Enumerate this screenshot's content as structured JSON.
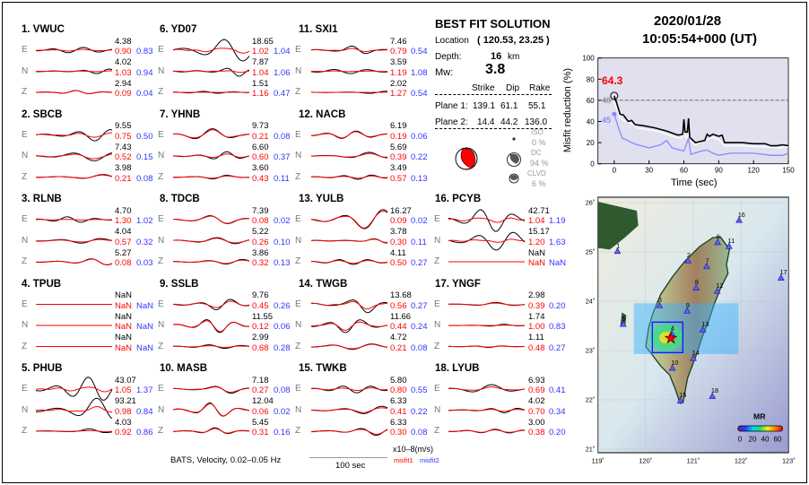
{
  "header": {
    "date": "2020/01/28",
    "time": "10:05:54+000  (UT)"
  },
  "best_fit": {
    "title": "BEST FIT SOLUTION",
    "location_label": "Location",
    "location": "( 120.53,  23.25 )",
    "depth_label": "Depth:",
    "depth": "16",
    "depth_unit": "km",
    "mw_label": "Mw:",
    "mw": "3.8",
    "headers": [
      "Strike",
      "Dip",
      "Rake"
    ],
    "planes": [
      {
        "label": "Plane 1:",
        "strike": "139.1",
        "dip": "61.1",
        "rake": "55.1"
      },
      {
        "label": "Plane 2:",
        "strike": "14.4",
        "dip": "44.2",
        "rake": "136.0"
      }
    ],
    "iso_label": "ISO",
    "iso": "0  %",
    "dc_label": "DC",
    "dc": "94 %",
    "clvd_label": "CLVD",
    "clvd": "6  %",
    "colors": {
      "beachball": "#ff0000"
    }
  },
  "footer": {
    "info": "BATS, Velocity, 0.02–0.05 Hz",
    "scale": "100 sec",
    "units": "x10–8(m/s)",
    "misfit1": "misfit1",
    "misfit2": "misfit2"
  },
  "stations": [
    {
      "title": "1.  VWUC",
      "comps": [
        [
          "E",
          "4.38",
          "0.90",
          "0.83"
        ],
        [
          "N",
          "4.02",
          "1.03",
          "0.94"
        ],
        [
          "Z",
          "2.94",
          "0.09",
          "0.04"
        ]
      ]
    },
    {
      "title": "2.  SBCB",
      "comps": [
        [
          "E",
          "9.55",
          "0.75",
          "0.50"
        ],
        [
          "N",
          "7.43",
          "0.52",
          "0.15"
        ],
        [
          "Z",
          "3.98",
          "0.21",
          "0.08"
        ]
      ]
    },
    {
      "title": "3.  RLNB",
      "comps": [
        [
          "E",
          "4.70",
          "1.30",
          "1.02"
        ],
        [
          "N",
          "4.04",
          "0.57",
          "0.32"
        ],
        [
          "Z",
          "5.27",
          "0.08",
          "0.03"
        ]
      ]
    },
    {
      "title": "4.  TPUB",
      "comps": [
        [
          "E",
          "NaN",
          "NaN",
          "NaN"
        ],
        [
          "N",
          "NaN",
          "NaN",
          "NaN"
        ],
        [
          "Z",
          "NaN",
          "NaN",
          "NaN"
        ]
      ]
    },
    {
      "title": "5.  PHUB",
      "comps": [
        [
          "E",
          "43.07",
          "1.05",
          "1.37"
        ],
        [
          "N",
          "93.21",
          "0.98",
          "0.84"
        ],
        [
          "Z",
          "4.03",
          "0.92",
          "0.86"
        ]
      ]
    },
    {
      "title": "6.  YD07",
      "comps": [
        [
          "E",
          "18.65",
          "1.02",
          "1.04"
        ],
        [
          "N",
          "7.87",
          "1.04",
          "1.06"
        ],
        [
          "Z",
          "1.51",
          "1.16",
          "0.47"
        ]
      ]
    },
    {
      "title": "7.  YHNB",
      "comps": [
        [
          "E",
          "9.73",
          "0.21",
          "0.08"
        ],
        [
          "N",
          "6.60",
          "0.60",
          "0.37"
        ],
        [
          "Z",
          "3.60",
          "0.43",
          "0.11"
        ]
      ]
    },
    {
      "title": "8.  TDCB",
      "comps": [
        [
          "E",
          "7.39",
          "0.08",
          "0.02"
        ],
        [
          "N",
          "5.22",
          "0.26",
          "0.10"
        ],
        [
          "Z",
          "3.86",
          "0.32",
          "0.13"
        ]
      ]
    },
    {
      "title": "9.  SSLB",
      "comps": [
        [
          "E",
          "9.76",
          "0.45",
          "0.26"
        ],
        [
          "N",
          "11.55",
          "0.12",
          "0.06"
        ],
        [
          "Z",
          "2.99",
          "0.68",
          "0.28"
        ]
      ]
    },
    {
      "title": "10. MASB",
      "comps": [
        [
          "E",
          "7.18",
          "0.27",
          "0.08"
        ],
        [
          "N",
          "12.04",
          "0.06",
          "0.02"
        ],
        [
          "Z",
          "5.45",
          "0.31",
          "0.16"
        ]
      ]
    },
    {
      "title": "11. SXI1",
      "comps": [
        [
          "E",
          "7.46",
          "0.79",
          "0.54"
        ],
        [
          "N",
          "3.59",
          "1.19",
          "1.08"
        ],
        [
          "Z",
          "2.02",
          "1.27",
          "0.54"
        ]
      ]
    },
    {
      "title": "12. NACB",
      "comps": [
        [
          "E",
          "6.19",
          "0.19",
          "0.06"
        ],
        [
          "N",
          "5.69",
          "0.39",
          "0.22"
        ],
        [
          "Z",
          "3.49",
          "0.57",
          "0.13"
        ]
      ]
    },
    {
      "title": "13. YULB",
      "comps": [
        [
          "E",
          "16.27",
          "0.09",
          "0.02"
        ],
        [
          "N",
          "3.78",
          "0.30",
          "0.11"
        ],
        [
          "Z",
          "4.11",
          "0.50",
          "0.27"
        ]
      ]
    },
    {
      "title": "14. TWGB",
      "comps": [
        [
          "E",
          "13.68",
          "0.56",
          "0.27"
        ],
        [
          "N",
          "11.66",
          "0.44",
          "0.24"
        ],
        [
          "Z",
          "4.72",
          "0.21",
          "0.08"
        ]
      ]
    },
    {
      "title": "15. TWKB",
      "comps": [
        [
          "E",
          "5.80",
          "0.80",
          "0.55"
        ],
        [
          "N",
          "6.33",
          "0.41",
          "0.22"
        ],
        [
          "Z",
          "6.33",
          "0.30",
          "0.08"
        ]
      ]
    },
    {
      "title": "16. PCYB",
      "comps": [
        [
          "E",
          "42.71",
          "1.04",
          "1.19"
        ],
        [
          "N",
          "15.17",
          "1.20",
          "1.63"
        ],
        [
          "Z",
          "NaN",
          "NaN",
          "NaN"
        ]
      ]
    },
    {
      "title": "17. YNGF",
      "comps": [
        [
          "E",
          "2.98",
          "0.39",
          "0.20"
        ],
        [
          "N",
          "1.74",
          "1.00",
          "0.83"
        ],
        [
          "Z",
          "1.11",
          "0.48",
          "0.27"
        ]
      ]
    },
    {
      "title": "18. LYUB",
      "comps": [
        [
          "E",
          "6.93",
          "0.69",
          "0.41"
        ],
        [
          "N",
          "4.02",
          "0.70",
          "0.34"
        ],
        [
          "Z",
          "3.00",
          "0.38",
          "0.20"
        ]
      ]
    }
  ],
  "chart_data": [
    {
      "type": "line",
      "xlabel": "Time (sec)",
      "ylabel": "Misfit reduction (%)",
      "xlim": [
        -14,
        150
      ],
      "ylim": [
        0,
        100
      ],
      "xticks": [
        "0",
        "30",
        "60",
        "90",
        "120",
        "150"
      ],
      "yticks": [
        "0",
        "20",
        "40",
        "60",
        "80",
        "100"
      ],
      "reference_line": 60,
      "max_label": "64.3",
      "label_white": "48",
      "label_blue": "45",
      "colors": {
        "black": "#000000",
        "white": "#ffffff",
        "blue": "#8888ff",
        "background": "#e0e0ee",
        "max": "#ff0000"
      },
      "series": [
        {
          "color": "black",
          "x": [
            0,
            2,
            5,
            8,
            12,
            15,
            18,
            25,
            35,
            45,
            55,
            59,
            60,
            61,
            63,
            64,
            65,
            70,
            78,
            80,
            82,
            85,
            90,
            93,
            95,
            110,
            120,
            130,
            135,
            140,
            145,
            150
          ],
          "y": [
            64,
            58,
            47,
            46,
            40,
            41,
            37,
            36,
            34,
            31,
            27,
            28,
            42,
            30,
            30,
            43,
            25,
            20,
            22,
            28,
            26,
            28,
            26,
            27,
            20,
            20,
            19,
            19,
            17,
            17,
            18,
            17
          ]
        },
        {
          "color": "white",
          "x": [
            0,
            2,
            5,
            10,
            15,
            20,
            30,
            40,
            50,
            58,
            60,
            62,
            64,
            66,
            70,
            80,
            85,
            90,
            95,
            110,
            130,
            140,
            150
          ],
          "y": [
            59,
            53,
            43,
            40,
            38,
            34,
            32,
            30,
            26,
            24,
            30,
            24,
            28,
            21,
            18,
            23,
            25,
            23,
            17,
            17,
            16,
            15,
            16
          ]
        },
        {
          "color": "blue",
          "x": [
            0,
            2,
            4,
            7,
            10,
            15,
            20,
            30,
            40,
            45,
            50,
            60,
            62,
            64,
            66,
            75,
            80,
            85,
            90,
            100,
            120,
            135,
            145,
            150
          ],
          "y": [
            47,
            40,
            33,
            24,
            23,
            20,
            18,
            15,
            18,
            22,
            15,
            12,
            18,
            24,
            9,
            12,
            13,
            10,
            8,
            10,
            10,
            8,
            8,
            10
          ]
        }
      ]
    },
    {
      "type": "map",
      "lon_ticks": [
        "119˚",
        "120˚",
        "121˚",
        "122˚",
        "123˚"
      ],
      "lat_ticks": [
        "21˚",
        "22˚",
        "23˚",
        "24˚",
        "25˚",
        "26˚"
      ],
      "epicenter": {
        "lon": 120.53,
        "lat": 23.25
      },
      "colorbar": {
        "title": "MR",
        "labels": [
          "0",
          "20",
          "40",
          "60"
        ]
      },
      "stations": [
        {
          "id": "1",
          "lon": 119.41,
          "lat": 25.01
        },
        {
          "id": "2",
          "lon": 120.89,
          "lat": 24.82
        },
        {
          "id": "3",
          "lon": 120.29,
          "lat": 23.91
        },
        {
          "id": "4",
          "lon": 120.55,
          "lat": 23.34
        },
        {
          "id": "5",
          "lon": 119.53,
          "lat": 23.53
        },
        {
          "id": "6",
          "lon": 121.51,
          "lat": 25.19
        },
        {
          "id": "7",
          "lon": 121.28,
          "lat": 24.7
        },
        {
          "id": "8",
          "lon": 121.06,
          "lat": 24.27
        },
        {
          "id": "9",
          "lon": 120.87,
          "lat": 23.8
        },
        {
          "id": "10",
          "lon": 120.56,
          "lat": 22.64
        },
        {
          "id": "11",
          "lon": 121.75,
          "lat": 25.11
        },
        {
          "id": "12",
          "lon": 121.5,
          "lat": 24.2
        },
        {
          "id": "13",
          "lon": 121.2,
          "lat": 23.42
        },
        {
          "id": "14",
          "lon": 121.0,
          "lat": 22.84
        },
        {
          "id": "15",
          "lon": 120.73,
          "lat": 21.98
        },
        {
          "id": "16",
          "lon": 121.96,
          "lat": 25.64
        },
        {
          "id": "17",
          "lon": 122.84,
          "lat": 24.47
        },
        {
          "id": "18",
          "lon": 121.4,
          "lat": 22.07
        }
      ]
    }
  ]
}
